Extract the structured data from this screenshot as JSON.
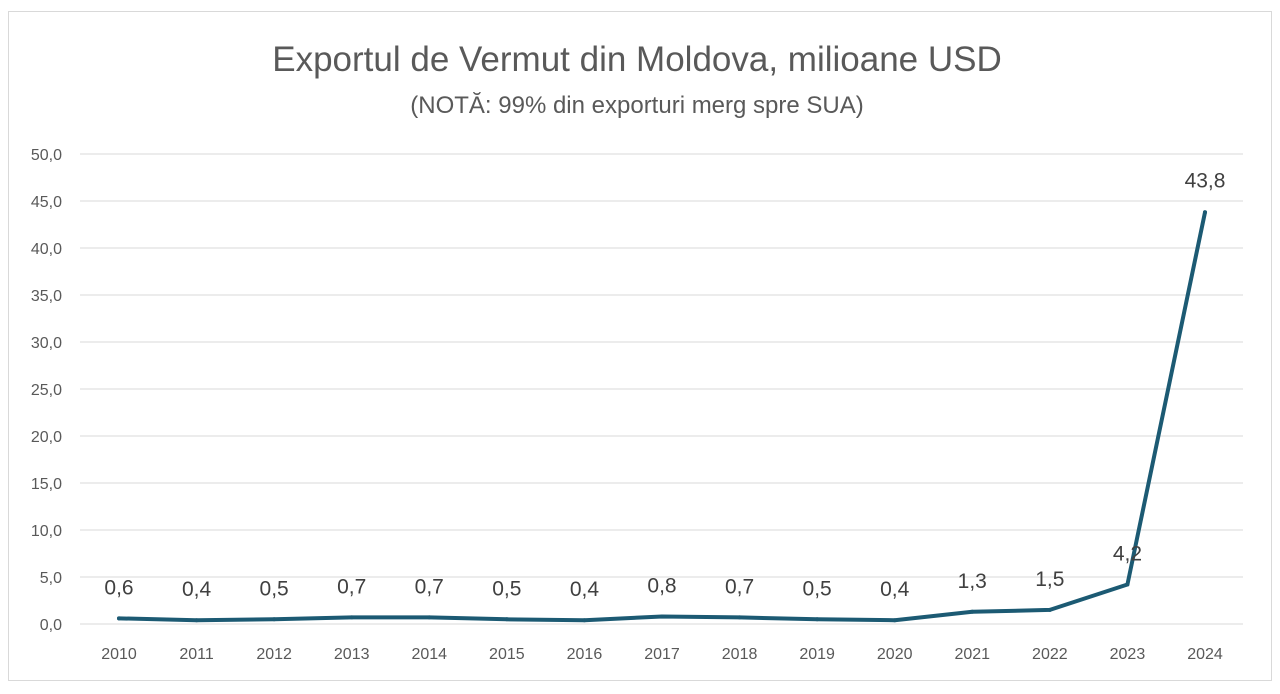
{
  "chart_data": {
    "type": "line",
    "title": "Exportul de Vermut din Moldova, milioane USD",
    "subtitle": "(NOTĂ: 99% din exporturi merg spre SUA)",
    "xlabel": "",
    "ylabel": "",
    "categories": [
      "2010",
      "2011",
      "2012",
      "2013",
      "2014",
      "2015",
      "2016",
      "2017",
      "2018",
      "2019",
      "2020",
      "2021",
      "2022",
      "2023",
      "2024"
    ],
    "series": [
      {
        "values": [
          0.6,
          0.4,
          0.5,
          0.7,
          0.7,
          0.5,
          0.4,
          0.8,
          0.7,
          0.5,
          0.4,
          1.3,
          1.5,
          4.2,
          43.8
        ],
        "data_labels": [
          "0,6",
          "0,4",
          "0,5",
          "0,7",
          "0,7",
          "0,5",
          "0,4",
          "0,8",
          "0,7",
          "0,5",
          "0,4",
          "1,3",
          "1,5",
          "4,2",
          "43,8"
        ]
      }
    ],
    "ylim": [
      0,
      50
    ],
    "yticks": [
      0,
      5,
      10,
      15,
      20,
      25,
      30,
      35,
      40,
      45,
      50
    ],
    "ytick_labels": [
      "0,0",
      "5,0",
      "10,0",
      "15,0",
      "20,0",
      "25,0",
      "30,0",
      "35,0",
      "40,0",
      "45,0",
      "50,0"
    ],
    "grid": true,
    "legend": "none",
    "colors": {
      "line": "#1c5a73",
      "grid": "#d9d9d9",
      "text": "#595959"
    }
  }
}
